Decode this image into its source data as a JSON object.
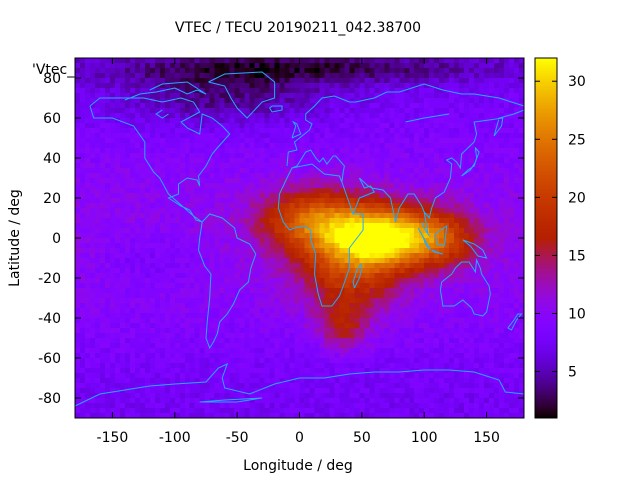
{
  "chart_data": {
    "type": "heatmap",
    "title": "VTEC / TECU 20190211_042.38700",
    "xlabel": "Longitude / deg",
    "ylabel": "Latitude / deg",
    "corner_key": "'Vtec_",
    "xlim": [
      -180,
      180
    ],
    "ylim": [
      -90,
      90
    ],
    "x_ticks": [
      "-150",
      "-100",
      "-50",
      "0",
      "50",
      "100",
      "150"
    ],
    "x_tick_values": [
      -150,
      -100,
      -50,
      0,
      50,
      100,
      150
    ],
    "y_ticks": [
      "80",
      "60",
      "40",
      "20",
      "0",
      "-20",
      "-40",
      "-60",
      "-80"
    ],
    "y_tick_values": [
      80,
      60,
      40,
      20,
      0,
      -20,
      -40,
      -60,
      -80
    ],
    "colorbar": {
      "range": [
        1,
        32
      ],
      "ticks": [
        "5",
        "10",
        "15",
        "20",
        "25",
        "30"
      ],
      "tick_values": [
        5,
        10,
        15,
        20,
        25,
        30
      ]
    },
    "peak": {
      "lon": 70,
      "lat": 0,
      "value": 29
    },
    "colors": {
      "coastline": "#22aaff"
    }
  }
}
